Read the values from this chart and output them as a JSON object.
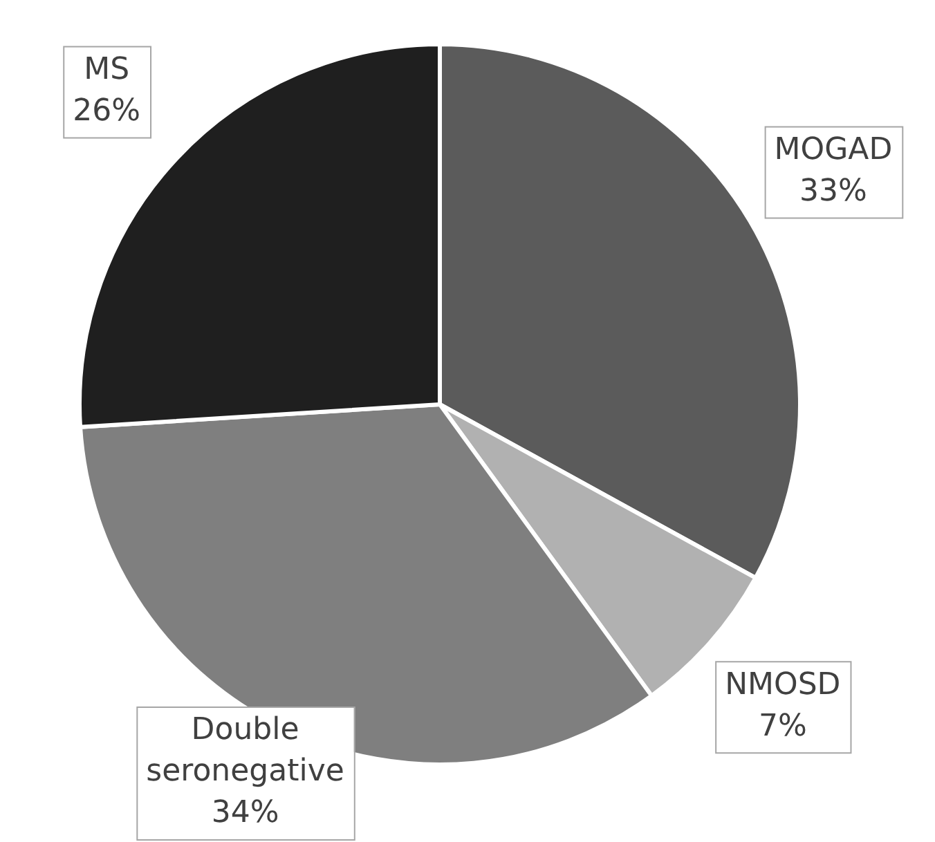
{
  "chart_data": {
    "type": "pie",
    "categories": [
      "MOGAD",
      "NMOSD",
      "Double seronegative",
      "MS"
    ],
    "values": [
      33,
      7,
      34,
      26
    ],
    "colors": [
      "#5b5b5b",
      "#b1b1b1",
      "#7f7f7f",
      "#1f1f1f"
    ],
    "value_labels": [
      "33%",
      "7%",
      "34%",
      "26%"
    ],
    "legend": false
  }
}
